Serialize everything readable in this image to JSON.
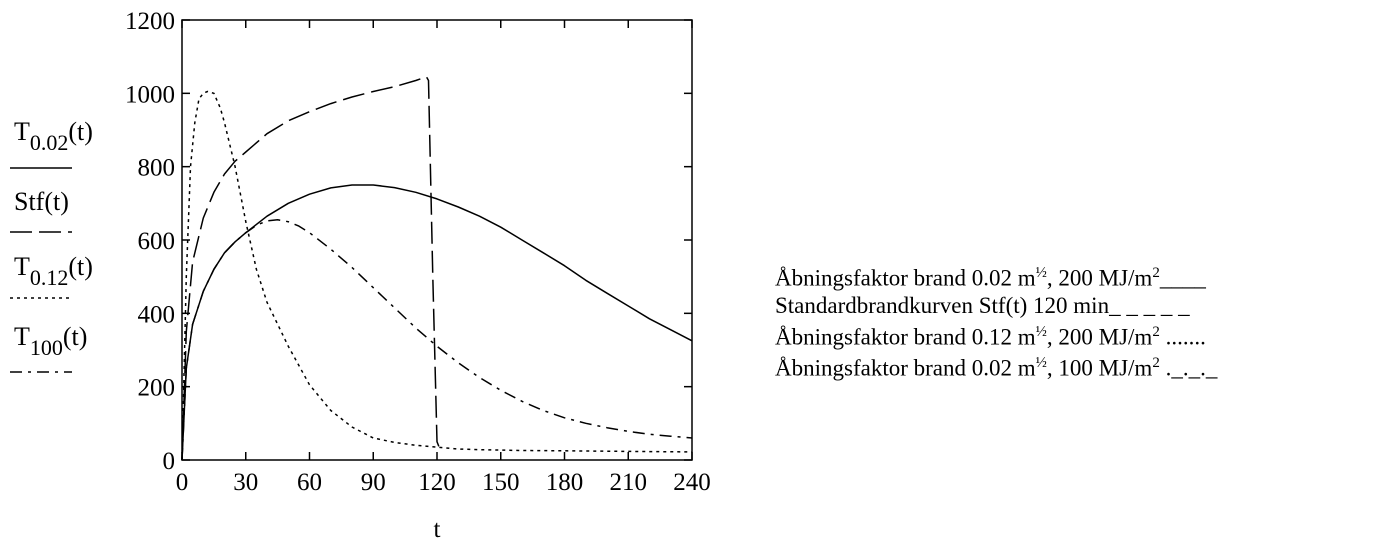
{
  "chart_data": {
    "type": "line",
    "xlabel": "t",
    "xlim": [
      0,
      240
    ],
    "ylim": [
      0,
      1200
    ],
    "xticks": [
      0,
      30,
      60,
      90,
      120,
      150,
      180,
      210,
      240
    ],
    "yticks": [
      0,
      200,
      400,
      600,
      800,
      1000,
      1200
    ],
    "grid": false,
    "y_axis_labels": [
      {
        "main": "T",
        "sub": "0.02",
        "suffix": "(t)",
        "style": "solid"
      },
      {
        "main": "Stf(t)",
        "sub": "",
        "suffix": "",
        "style": "dashed"
      },
      {
        "main": "T",
        "sub": "0.12",
        "suffix": "(t)",
        "style": "dotted"
      },
      {
        "main": "T",
        "sub": "100",
        "suffix": "(t)",
        "style": "dashdot"
      }
    ],
    "series": [
      {
        "label": "T0.02(t)",
        "style": "solid",
        "x": [
          0,
          2,
          5,
          10,
          15,
          20,
          25,
          30,
          40,
          50,
          60,
          70,
          80,
          90,
          100,
          110,
          120,
          130,
          140,
          150,
          160,
          170,
          180,
          190,
          200,
          210,
          220,
          230,
          240
        ],
        "y": [
          0,
          250,
          370,
          460,
          520,
          565,
          595,
          620,
          665,
          700,
          725,
          742,
          750,
          750,
          743,
          730,
          712,
          690,
          665,
          635,
          600,
          565,
          530,
          490,
          455,
          420,
          385,
          355,
          325
        ]
      },
      {
        "label": "Stf(t)",
        "style": "dashed",
        "x": [
          0,
          2,
          5,
          10,
          15,
          20,
          25,
          30,
          40,
          50,
          60,
          70,
          80,
          90,
          100,
          110,
          115,
          116,
          118,
          120,
          122
        ],
        "y": [
          0,
          350,
          540,
          660,
          730,
          780,
          815,
          840,
          890,
          925,
          950,
          972,
          990,
          1005,
          1018,
          1035,
          1045,
          1035,
          500,
          50,
          20
        ]
      },
      {
        "label": "T0.12(t)",
        "style": "dotted",
        "x": [
          0,
          2,
          4,
          6,
          8,
          10,
          12,
          15,
          18,
          20,
          25,
          30,
          35,
          40,
          50,
          60,
          70,
          80,
          90,
          100,
          110,
          120,
          130,
          140,
          160,
          180,
          200,
          220,
          240
        ],
        "y": [
          0,
          500,
          800,
          920,
          985,
          1000,
          1005,
          1000,
          960,
          920,
          800,
          650,
          520,
          430,
          310,
          205,
          135,
          90,
          60,
          48,
          40,
          35,
          30,
          28,
          26,
          25,
          24,
          23,
          22
        ]
      },
      {
        "label": "T100(t)",
        "style": "dashdot",
        "x": [
          0,
          2,
          5,
          10,
          15,
          20,
          25,
          30,
          35,
          40,
          45,
          50,
          55,
          60,
          70,
          80,
          90,
          100,
          110,
          120,
          130,
          140,
          150,
          160,
          170,
          180,
          190,
          200,
          210,
          220,
          230,
          240
        ],
        "y": [
          0,
          250,
          370,
          460,
          520,
          565,
          595,
          620,
          640,
          652,
          655,
          650,
          638,
          620,
          575,
          525,
          470,
          415,
          360,
          310,
          265,
          225,
          190,
          160,
          135,
          115,
          100,
          88,
          78,
          70,
          65,
          60
        ]
      }
    ],
    "legend_items": [
      {
        "label": "Åbningsfaktor brand 0.02 m",
        "sup": "½",
        "rest": ", 200 MJ/m",
        "sup2": "2",
        "marker": "____"
      },
      {
        "label": "Standardbrandkurven Stf(t) 120 min",
        "sup": "",
        "rest": "",
        "sup2": "",
        "marker": "_ _ _ _ _"
      },
      {
        "label": "Åbningsfaktor brand 0.12 m",
        "sup": "½",
        "rest": ", 200 MJ/m",
        "sup2": "2",
        "marker": " ......."
      },
      {
        "label": "Åbningsfaktor brand 0.02 m",
        "sup": "½",
        "rest": ", 100 MJ/m",
        "sup2": "2",
        "marker": " ._._._"
      }
    ]
  }
}
